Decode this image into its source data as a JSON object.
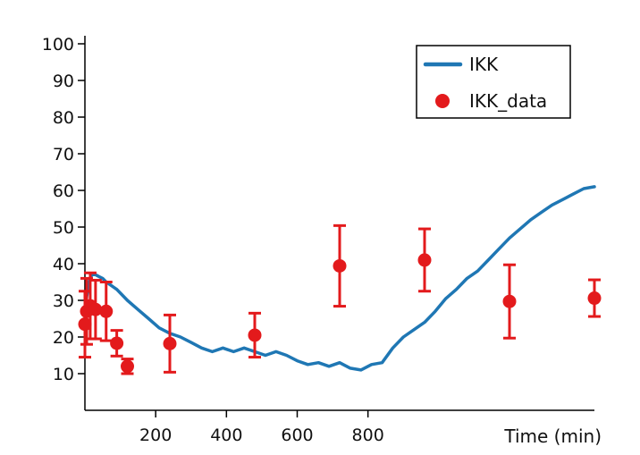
{
  "chart_data": {
    "type": "line",
    "xlabel": "Time (min)",
    "ylabel": "",
    "xlim": [
      0,
      1440
    ],
    "ylim": [
      0,
      100
    ],
    "x_ticks": [
      200,
      400,
      600,
      800
    ],
    "y_ticks": [
      10,
      20,
      30,
      40,
      50,
      60,
      70,
      80,
      90,
      100
    ],
    "grid": false,
    "legend_position": "top-right",
    "colors": {
      "model": "#1f77b4",
      "data": "#e31a1c"
    },
    "series": [
      {
        "name": "IKK",
        "style": "line",
        "x": [
          0,
          5,
          10,
          15,
          20,
          30,
          40,
          50,
          60,
          75,
          90,
          105,
          120,
          150,
          180,
          210,
          240,
          270,
          300,
          330,
          360,
          390,
          420,
          450,
          480,
          510,
          540,
          570,
          600,
          630,
          660,
          690,
          720,
          750,
          780,
          810,
          840,
          870,
          900,
          930,
          960,
          990,
          1020,
          1050,
          1080,
          1110,
          1140,
          1170,
          1200,
          1230,
          1260,
          1290,
          1320,
          1350,
          1380,
          1410,
          1440
        ],
        "y": [
          25,
          31,
          34,
          36,
          37,
          37,
          36.5,
          36,
          35,
          34,
          33,
          31.5,
          30,
          27.5,
          25,
          22.5,
          21,
          20,
          18.5,
          17,
          16,
          17,
          16,
          17,
          16,
          15,
          16,
          15,
          13.5,
          12.5,
          13,
          12,
          13,
          11.5,
          11,
          12.5,
          13,
          17,
          20,
          22,
          24,
          27,
          30.5,
          33,
          36,
          38,
          41,
          44,
          47,
          49.5,
          52,
          54,
          56,
          57.5,
          59,
          60.5,
          61
        ]
      },
      {
        "name": "IKK_data",
        "style": "errorbar",
        "x": [
          0,
          5,
          15,
          30,
          60,
          90,
          120,
          240,
          480,
          720,
          960,
          1200,
          1440
        ],
        "y": [
          23.5,
          27,
          28.5,
          27.5,
          27,
          18.3,
          12,
          18.2,
          20.5,
          39.4,
          41,
          29.7,
          30.6
        ],
        "err": [
          9,
          9,
          9,
          8,
          8,
          3.5,
          2,
          7.8,
          6,
          11,
          8.5,
          10,
          5
        ]
      }
    ]
  }
}
